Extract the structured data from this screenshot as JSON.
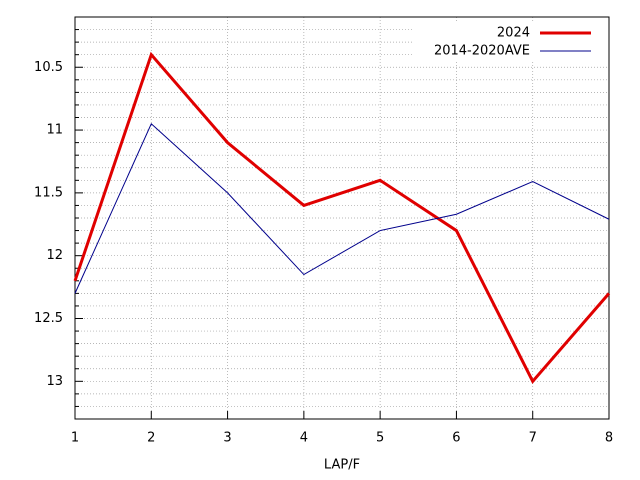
{
  "chart_data": {
    "type": "line",
    "x_label": "LAP/F",
    "x": [
      1,
      2,
      3,
      4,
      5,
      6,
      7,
      8
    ],
    "series": [
      {
        "name": "2024",
        "color": "#e00000",
        "width": 3,
        "values": [
          12.2,
          10.4,
          11.1,
          11.6,
          11.4,
          11.8,
          13.0,
          12.3
        ]
      },
      {
        "name": "2014-2020AVE",
        "color": "#00008b",
        "width": 1,
        "values": [
          12.3,
          10.95,
          11.5,
          12.15,
          11.8,
          11.67,
          11.41,
          11.71
        ]
      }
    ],
    "xlim": [
      1,
      8
    ],
    "xticks": [
      1,
      2,
      3,
      4,
      5,
      6,
      7,
      8
    ],
    "ylim": [
      10.1,
      13.3
    ],
    "y_reversed": true,
    "yticks": [
      10.5,
      11,
      11.5,
      12,
      12.5,
      13
    ],
    "yminorticks": [
      10.1,
      10.2,
      10.3,
      10.4,
      10.6,
      10.7,
      10.8,
      10.9,
      11.1,
      11.2,
      11.3,
      11.4,
      11.6,
      11.7,
      11.8,
      11.9,
      12.1,
      12.2,
      12.3,
      12.4,
      12.6,
      12.7,
      12.8,
      12.9,
      13.1,
      13.2,
      13.3
    ],
    "grid": true,
    "legend": "top-right"
  }
}
